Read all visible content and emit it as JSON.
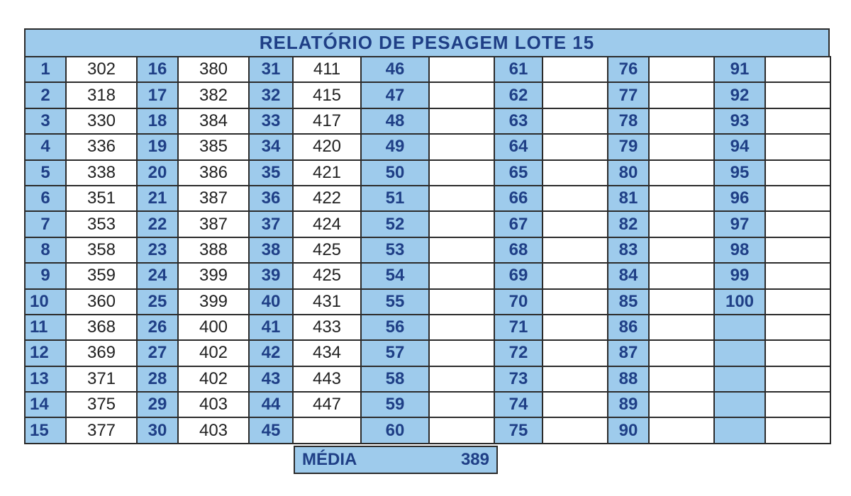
{
  "title": "RELATÓRIO DE PESAGEM LOTE  15",
  "media": {
    "label": "MÉDIA",
    "value": "389"
  },
  "columns": [
    {
      "numbers": [
        "1",
        "2",
        "3",
        "4",
        "5",
        "6",
        "7",
        "8",
        "9",
        "10",
        "11",
        "12",
        "13",
        "14",
        "15"
      ],
      "weights": [
        "302",
        "318",
        "330",
        "336",
        "338",
        "351",
        "353",
        "358",
        "359",
        "360",
        "368",
        "369",
        "371",
        "375",
        "377"
      ]
    },
    {
      "numbers": [
        "16",
        "17",
        "18",
        "19",
        "20",
        "21",
        "22",
        "23",
        "24",
        "25",
        "26",
        "27",
        "28",
        "29",
        "30"
      ],
      "weights": [
        "380",
        "382",
        "384",
        "385",
        "386",
        "387",
        "387",
        "388",
        "399",
        "399",
        "400",
        "402",
        "402",
        "403",
        "403"
      ]
    },
    {
      "numbers": [
        "31",
        "32",
        "33",
        "34",
        "35",
        "36",
        "37",
        "38",
        "39",
        "40",
        "41",
        "42",
        "43",
        "44",
        "45"
      ],
      "weights": [
        "411",
        "415",
        "417",
        "420",
        "421",
        "422",
        "424",
        "425",
        "425",
        "431",
        "433",
        "434",
        "443",
        "447",
        ""
      ]
    },
    {
      "numbers": [
        "46",
        "47",
        "48",
        "49",
        "50",
        "51",
        "52",
        "53",
        "54",
        "55",
        "56",
        "57",
        "58",
        "59",
        "60"
      ],
      "weights": [
        "",
        "",
        "",
        "",
        "",
        "",
        "",
        "",
        "",
        "",
        "",
        "",
        "",
        "",
        ""
      ]
    },
    {
      "numbers": [
        "61",
        "62",
        "63",
        "64",
        "65",
        "66",
        "67",
        "68",
        "69",
        "70",
        "71",
        "72",
        "73",
        "74",
        "75"
      ],
      "weights": [
        "",
        "",
        "",
        "",
        "",
        "",
        "",
        "",
        "",
        "",
        "",
        "",
        "",
        "",
        ""
      ]
    },
    {
      "numbers": [
        "76",
        "77",
        "78",
        "79",
        "80",
        "81",
        "82",
        "83",
        "84",
        "85",
        "86",
        "87",
        "88",
        "89",
        "90"
      ],
      "weights": [
        "",
        "",
        "",
        "",
        "",
        "",
        "",
        "",
        "",
        "",
        "",
        "",
        "",
        "",
        ""
      ]
    },
    {
      "numbers": [
        "91",
        "92",
        "93",
        "94",
        "95",
        "96",
        "97",
        "98",
        "99",
        "100",
        "",
        "",
        "",
        "",
        ""
      ],
      "weights": [
        "",
        "",
        "",
        "",
        "",
        "",
        "",
        "",
        "",
        "",
        "",
        "",
        "",
        "",
        ""
      ]
    }
  ]
}
